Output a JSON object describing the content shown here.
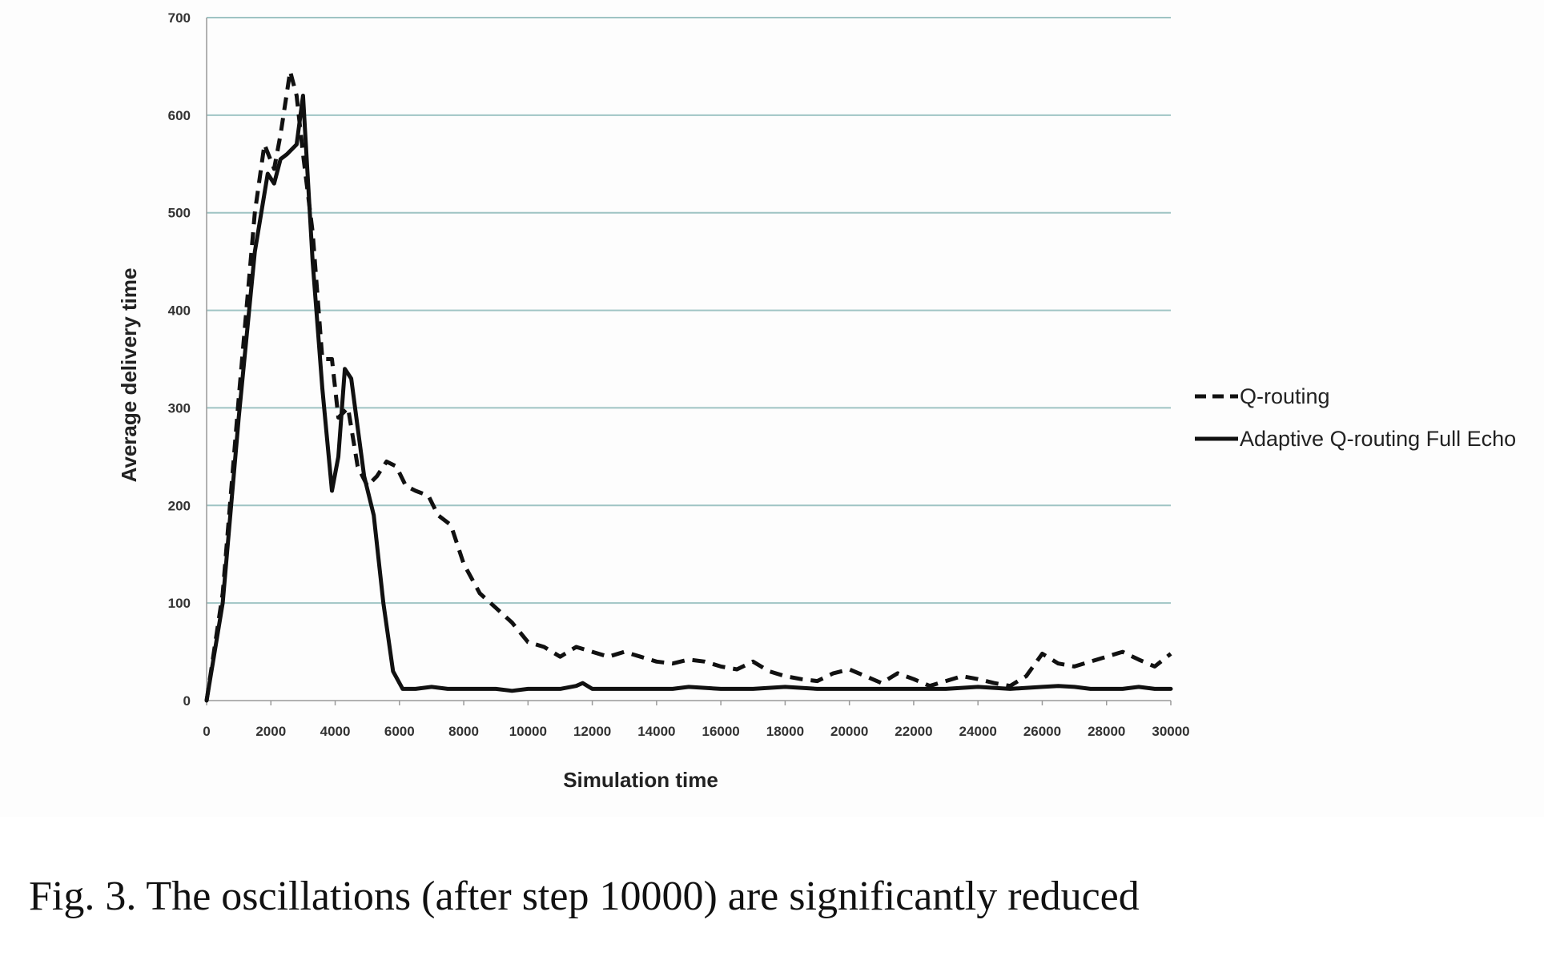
{
  "chart_data": {
    "type": "line",
    "title": "",
    "xlabel": "Simulation time",
    "ylabel": "Average delivery time",
    "xlim": [
      0,
      30000
    ],
    "ylim": [
      0,
      700
    ],
    "x_ticks": [
      "0",
      "2000",
      "4000",
      "6000",
      "8000",
      "10000",
      "12000",
      "14000",
      "16000",
      "18000",
      "20000",
      "22000",
      "24000",
      "26000",
      "28000",
      "30000"
    ],
    "y_ticks": [
      "0",
      "100",
      "200",
      "300",
      "400",
      "500",
      "600",
      "700"
    ],
    "grid": "horizontal",
    "legend_position": "right",
    "series": [
      {
        "name": "Q-routing",
        "style": "dashed",
        "color": "#111111",
        "x": [
          0,
          500,
          1000,
          1500,
          1800,
          2100,
          2300,
          2600,
          2800,
          3000,
          3300,
          3600,
          3900,
          4100,
          4400,
          4700,
          5000,
          5300,
          5600,
          5900,
          6200,
          6500,
          6900,
          7200,
          7600,
          8000,
          8500,
          9000,
          9500,
          10000,
          10500,
          11000,
          11500,
          12000,
          12500,
          13000,
          13500,
          14000,
          14500,
          15000,
          15500,
          16000,
          16500,
          17000,
          17500,
          18000,
          18500,
          19000,
          19500,
          20000,
          20500,
          21000,
          21500,
          22000,
          22500,
          23000,
          23500,
          24000,
          24500,
          25000,
          25500,
          26000,
          26500,
          27000,
          27500,
          28000,
          28500,
          29000,
          29500,
          30000
        ],
        "y": [
          0,
          110,
          310,
          500,
          570,
          545,
          580,
          645,
          620,
          560,
          480,
          350,
          350,
          290,
          300,
          240,
          220,
          230,
          245,
          240,
          220,
          215,
          210,
          190,
          180,
          140,
          110,
          95,
          80,
          60,
          55,
          45,
          55,
          50,
          45,
          50,
          45,
          40,
          38,
          42,
          40,
          35,
          32,
          40,
          30,
          25,
          22,
          20,
          28,
          32,
          25,
          18,
          28,
          22,
          15,
          20,
          25,
          22,
          18,
          15,
          25,
          48,
          38,
          35,
          40,
          45,
          50,
          42,
          35,
          48
        ]
      },
      {
        "name": "Adaptive Q-routing Full Echo",
        "style": "solid",
        "color": "#111111",
        "x": [
          0,
          500,
          1000,
          1500,
          1900,
          2100,
          2300,
          2500,
          2800,
          3000,
          3300,
          3600,
          3900,
          4100,
          4300,
          4500,
          4700,
          4900,
          5200,
          5500,
          5800,
          6100,
          6500,
          7000,
          7500,
          8000,
          8500,
          9000,
          9500,
          10000,
          10500,
          11000,
          11500,
          11700,
          12000,
          13000,
          14000,
          14500,
          15000,
          16000,
          17000,
          18000,
          19000,
          20000,
          21000,
          22000,
          23000,
          24000,
          25000,
          26000,
          26500,
          27000,
          27500,
          28000,
          28500,
          29000,
          29500,
          30000
        ],
        "y": [
          0,
          100,
          290,
          460,
          540,
          530,
          555,
          560,
          570,
          620,
          450,
          320,
          215,
          250,
          340,
          330,
          280,
          230,
          190,
          100,
          30,
          12,
          12,
          14,
          12,
          12,
          12,
          12,
          10,
          12,
          12,
          12,
          15,
          18,
          12,
          12,
          12,
          12,
          14,
          12,
          12,
          14,
          12,
          12,
          12,
          12,
          12,
          14,
          12,
          14,
          15,
          14,
          12,
          12,
          12,
          14,
          12,
          12
        ]
      }
    ]
  },
  "caption": "Fig. 3.   The oscillations (after step 10000) are significantly reduced"
}
